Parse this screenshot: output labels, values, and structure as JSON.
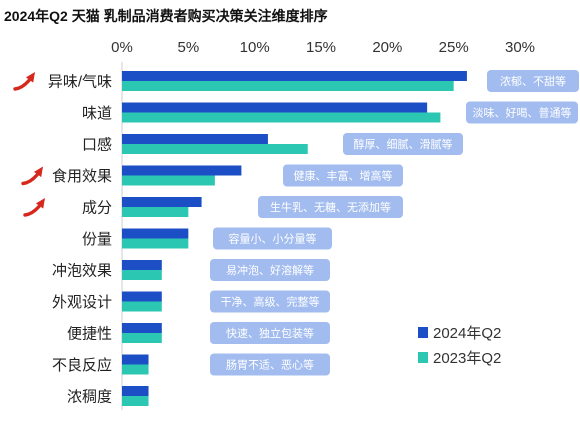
{
  "chart_data": {
    "type": "bar",
    "orientation": "horizontal",
    "title": "2024年Q2 天猫 乳制品消费者购买决策关注维度排序",
    "categories": [
      "异味/气味",
      "味道",
      "口感",
      "食用效果",
      "成分",
      "份量",
      "冲泡效果",
      "外观设计",
      "便捷性",
      "不良反应",
      "浓稠度"
    ],
    "series": [
      {
        "name": "2024年Q2",
        "color": "#1c4fc6",
        "values": [
          26,
          23,
          11,
          9,
          6,
          5,
          3,
          3,
          3,
          2,
          2
        ]
      },
      {
        "name": "2023年Q2",
        "color": "#2cc7b3",
        "values": [
          25,
          24,
          14,
          7,
          5,
          5,
          3,
          3,
          3,
          2,
          2
        ]
      }
    ],
    "xlim": [
      0,
      30
    ],
    "x_ticks": [
      "0%",
      "5%",
      "10%",
      "15%",
      "20%",
      "25%",
      "30%"
    ],
    "x_axis_position": "top",
    "grid": false,
    "legend_position": "bottom-right",
    "annotations": [
      "浓郁、不甜等",
      "淡味、好喝、普通等",
      "醇厚、细腻、滑腻等",
      "健康、丰富、增高等",
      "生牛乳、无糖、无添加等",
      "容量小、小分量等",
      "易冲泡、好溶解等",
      "干净、高级、完整等",
      "快速、独立包装等",
      "肠胃不适、恶心等"
    ],
    "annotation_color": "#a2bcef",
    "highlighted_categories": [
      "异味/气味",
      "食用效果",
      "成分"
    ],
    "highlight_icon": "red-up-arrow-icon",
    "highlight_color": "#d6291d"
  }
}
